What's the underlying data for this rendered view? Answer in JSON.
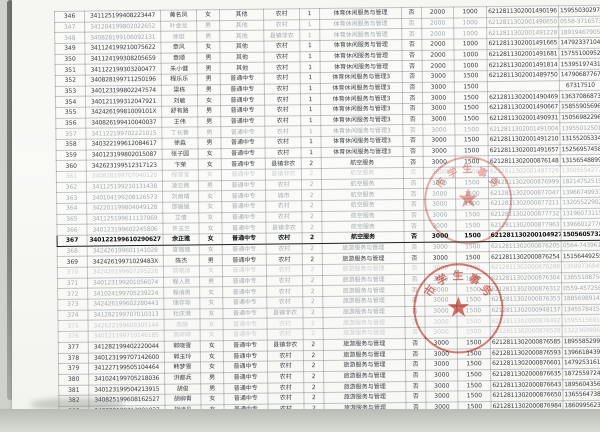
{
  "document": {
    "description_visible_range_first_row": "346",
    "description_visible_range_last_row": "384"
  },
  "stamps": [
    {
      "name": "upper-official-seal",
      "arc_text": "市学生事务",
      "star_icon": "★",
      "color": "#c83e34"
    },
    {
      "name": "lower-official-seal",
      "arc_text": "市学生事务",
      "star_icon": "★",
      "color": "#c5362c"
    }
  ],
  "table": {
    "rows": [
      {
        "tone": "normal",
        "cells": [
          "346",
          "341125199408223447",
          "黄名凤",
          "女",
          "其他",
          "农村",
          "1",
          "体育休闲服务与管理",
          "否",
          "2000",
          "1000",
          "6212811302001490196",
          "15955030297"
        ]
      },
      {
        "tone": "faint",
        "cells": [
          "347",
          "341204199802022652",
          "叶金龙",
          "男",
          "其他",
          "农村",
          "1",
          "体育休闲服务与管理",
          "否",
          "2000",
          "1000",
          "6212811302001490650",
          "0558-3716573"
        ]
      },
      {
        "tone": "faint",
        "cells": [
          "348",
          "340828199106092131",
          "徐挺",
          "男",
          "其他",
          "县镇非农",
          "1",
          "体育休闲服务与管理",
          "否",
          "2000",
          "1000",
          "6212811302001491228",
          "18919467905"
        ]
      },
      {
        "tone": "normal",
        "cells": [
          "349",
          "341124199210075622",
          "章风",
          "女",
          "其他",
          "农村",
          "1",
          "体育休闲服务与管理",
          "否",
          "2000",
          "1000",
          "6212811302001491665",
          "14792337104"
        ]
      },
      {
        "tone": "normal",
        "cells": [
          "350",
          "341124199308205659",
          "章顺",
          "男",
          "其他",
          "农村",
          "1",
          "体育休闲服务与管理",
          "否",
          "2000",
          "1000",
          "6212811302001491681",
          "15755100952"
        ]
      },
      {
        "tone": "normal",
        "cells": [
          "351",
          "341122199303200477",
          "朱小健",
          "男",
          "其他",
          "农村",
          "1",
          "体育休闲服务与管理",
          "否",
          "2000",
          "1000",
          "6212811302001491814",
          "15395197431"
        ]
      },
      {
        "tone": "normal",
        "cells": [
          "352",
          "340828199711250196",
          "程乐乐",
          "男",
          "普通中专",
          "农村",
          "1",
          "体育休闲服务与管理3",
          "否",
          "3000",
          "1500",
          "6212811302001489750",
          "14790687767"
        ]
      },
      {
        "tone": "normal",
        "cells": [
          "353",
          "340123199802247574",
          "梁栋",
          "男",
          "普通中专",
          "农村",
          "1",
          "体育休闲服务与管理3",
          "否",
          "3000",
          "1500",
          "",
          "67317510"
        ]
      },
      {
        "tone": "normal",
        "cells": [
          "354",
          "340121199312047921",
          "刘敏",
          "女",
          "普通中专",
          "农村",
          "1",
          "体育休闲服务与管理3",
          "否",
          "3000",
          "1500",
          "6212811302001490469",
          "13637086873"
        ]
      },
      {
        "tone": "normal",
        "cells": [
          "355",
          "34242619981009101X",
          "舒有路",
          "男",
          "普通中专",
          "农村",
          "1",
          "体育休闲服务与管理3",
          "否",
          "3000",
          "1500",
          "6212811302001490667",
          "15855905696"
        ]
      },
      {
        "tone": "normal",
        "cells": [
          "356",
          "340826199410040037",
          "王伟",
          "男",
          "普通中专",
          "农村",
          "1",
          "体育休闲服务与管理3",
          "否",
          "3000",
          "1500",
          "6212811302001490931",
          "15056982296"
        ]
      },
      {
        "tone": "faint",
        "cells": [
          "357",
          "341122199702221015",
          "丁长春",
          "男",
          "普通中专",
          "农村",
          "1",
          "体育休闲服务与管理3",
          "否",
          "3000",
          "1500",
          "6212811302001491004",
          "13955012501"
        ]
      },
      {
        "tone": "normal",
        "cells": [
          "358",
          "340322199612084617",
          "徐淼",
          "男",
          "普通中专",
          "农村",
          "1",
          "体育休闲服务与管理3",
          "否",
          "3000",
          "1500",
          "6212811302001491210",
          "13155205334"
        ]
      },
      {
        "tone": "normal",
        "cells": [
          "359",
          "340123199802015087",
          "张子园",
          "女",
          "普通中专",
          "农村",
          "1",
          "体育休闲服务与管理3",
          "否",
          "3000",
          "1500",
          "6212811302001491657",
          "15256957458"
        ]
      },
      {
        "tone": "normal",
        "cells": [
          "360",
          "342623199512317123",
          "卞荣",
          "女",
          "普通中专",
          "县镇非农",
          "2",
          "航空服务",
          "否",
          "3000",
          "1500",
          "6212811302000876148",
          "13156548899"
        ]
      },
      {
        "tone": "xfaint",
        "cells": [
          "361",
          "340828199707040120",
          "程雪莹",
          "女",
          "普通中专",
          "县镇非农",
          "2",
          "航空服务",
          "否",
          "3000",
          "1500",
          "6212811302001487726",
          "13505554277"
        ]
      },
      {
        "tone": "faint",
        "cells": [
          "362",
          "341125199210131438",
          "凌云微",
          "男",
          "普通中专",
          "农村",
          "2",
          "航空服务",
          "否",
          "3000",
          "1500",
          "6212811302000876999",
          "18214752519"
        ]
      },
      {
        "tone": "faint",
        "cells": [
          "363",
          "340104199208126573",
          "刘雨晴",
          "女",
          "普通中专",
          "城市",
          "2",
          "航空服务",
          "否",
          "3000",
          "1500",
          "6212811302000877047",
          "13966749937"
        ]
      },
      {
        "tone": "faint",
        "cells": [
          "364",
          "342201199804049128",
          "邵媛媛",
          "女",
          "普通中专",
          "农村",
          "2",
          "航空服务",
          "否",
          "3000",
          "1500",
          "6212811302000877211",
          "13205522902"
        ]
      },
      {
        "tone": "faint",
        "cells": [
          "365",
          "341125199611137069",
          "艾倩",
          "女",
          "普通中专",
          "农村",
          "2",
          "航空服务",
          "否",
          "3000",
          "1500",
          "6212811302000877732",
          "13196073115"
        ]
      },
      {
        "tone": "faint",
        "cells": [
          "366",
          "340123199602245806",
          "许玉兰",
          "女",
          "普通中专",
          "县镇非农",
          "2",
          "航空服务",
          "否",
          "3000",
          "1500",
          "6212811302000877963",
          "13966012776"
        ]
      },
      {
        "tone": "bold",
        "cells": [
          "367",
          "340122199610290627",
          "余正雅",
          "女",
          "普通中专",
          "农村",
          "2",
          "航空服务",
          "否",
          "3000",
          "1500",
          "6212811302001049273",
          "15056057329"
        ]
      },
      {
        "tone": "faint",
        "cells": [
          "368",
          "342426199601141028",
          "查璐璐",
          "女",
          "普通中专",
          "农村",
          "2",
          "旅游服务与管理",
          "否",
          "3000",
          "1500",
          "6212811302000876205",
          "0564-7439617"
        ]
      },
      {
        "tone": "normal",
        "cells": [
          "369",
          "34242619971029483X",
          "陈杰",
          "男",
          "普通中专",
          "农村",
          "2",
          "旅游服务与管理",
          "否",
          "3000",
          "1500",
          "6212811302000876254",
          "15156449255"
        ]
      },
      {
        "tone": "xfaint",
        "cells": [
          "370",
          "342426199607295228",
          "简晓琼",
          "女",
          "普通中专",
          "农村",
          "2",
          "旅游服务与管理",
          "否",
          "3000",
          "1500",
          "6212811302000876288",
          "13599736845"
        ]
      },
      {
        "tone": "faint",
        "cells": [
          "371",
          "340123199201056074",
          "程人胜",
          "男",
          "普通中专",
          "农村",
          "2",
          "旅游服务与管理",
          "否",
          "3000",
          "1500",
          "6212811302000876304",
          "13855108756"
        ]
      },
      {
        "tone": "faint",
        "cells": [
          "372",
          "341024199705239224",
          "程俏男",
          "女",
          "普通中专",
          "农村",
          "2",
          "旅游服务与管理",
          "否",
          "3000",
          "1500",
          "6212811302000876312",
          "0559-4572561"
        ]
      },
      {
        "tone": "faint",
        "cells": [
          "373",
          "342426199602280443",
          "储存琼",
          "女",
          "普通中专",
          "农村",
          "2",
          "旅游服务与管理",
          "否",
          "3000",
          "1500",
          "6212811302000876353",
          "18856989145"
        ]
      },
      {
        "tone": "faint",
        "cells": [
          "374",
          "341282199707010313",
          "杜庆港",
          "女",
          "普通中专",
          "县镇非农",
          "2",
          "旅游服务与管理",
          "否",
          "3000",
          "1500",
          "6212811302000948137",
          "13455784152"
        ]
      },
      {
        "tone": "xfaint",
        "cells": [
          "375",
          "342622199609305144",
          "高静",
          "女",
          "普通中专",
          "农村",
          "2",
          "旅游服务与管理",
          "否",
          "3000",
          "1500",
          "6212811302000876492",
          "15955156919"
        ]
      },
      {
        "tone": "xfaint",
        "cells": [
          "376",
          "340121199710146185",
          "高婷婷",
          "女",
          "普通中专",
          "农村",
          "2",
          "旅游服务与管理",
          "否",
          "3000",
          "1500",
          "6212811302000876528",
          "13223609065"
        ]
      },
      {
        "tone": "normal",
        "cells": [
          "377",
          "341282199402220044",
          "郭晓雪",
          "女",
          "普通中专",
          "县镇非农",
          "2",
          "旅游服务与管理",
          "否",
          "3000",
          "1500",
          "6212811302000876585",
          "18955852999"
        ]
      },
      {
        "tone": "normal",
        "cells": [
          "378",
          "340123199707142600",
          "郭玉玲",
          "女",
          "普通中专",
          "农村",
          "2",
          "旅游服务与管理",
          "否",
          "3000",
          "1500",
          "6212811302000876593",
          "13966184391"
        ]
      },
      {
        "tone": "normal",
        "cells": [
          "379",
          "341227199505104464",
          "韩梦雪",
          "女",
          "普通中专",
          "农村",
          "2",
          "旅游服务与管理",
          "否",
          "3000",
          "1500",
          "6212811302000876601",
          "14792531610"
        ]
      },
      {
        "tone": "normal",
        "cells": [
          "380",
          "341024199705218036",
          "洪都兵",
          "男",
          "普通中专",
          "农村",
          "2",
          "旅游服务与管理",
          "否",
          "3000",
          "1500",
          "6212811302000876635",
          "18725597243"
        ]
      },
      {
        "tone": "normal",
        "cells": [
          "381",
          "340123199504213915",
          "胡俊",
          "男",
          "普通中专",
          "农村",
          "2",
          "旅游服务与管理",
          "否",
          "3000",
          "1500",
          "6212811302000876643",
          "18956043565"
        ]
      },
      {
        "tone": "normal",
        "cells": [
          "382",
          "340825199608162527",
          "胡柳青",
          "女",
          "普通中专",
          "农村",
          "2",
          "旅游服务与管理",
          "否",
          "3000",
          "1500",
          "6212811302000876650",
          "13655647388"
        ]
      },
      {
        "tone": "normal",
        "cells": [
          "383",
          "340828199712091027",
          "胡诗凡",
          "女",
          "普通中专",
          "农村",
          "2",
          "旅游服务与管理",
          "否",
          "3000",
          "1500",
          "6212811302000876984",
          "18609956232"
        ]
      },
      {
        "tone": "xfaint",
        "cells": [
          "384",
          "341176199671362545",
          "施锋",
          "男",
          "普通中专",
          "农村",
          "2",
          "旅游服务与管理",
          "否",
          "3000",
          "1500",
          "6212811302000876725",
          "13791765879"
        ]
      }
    ]
  }
}
